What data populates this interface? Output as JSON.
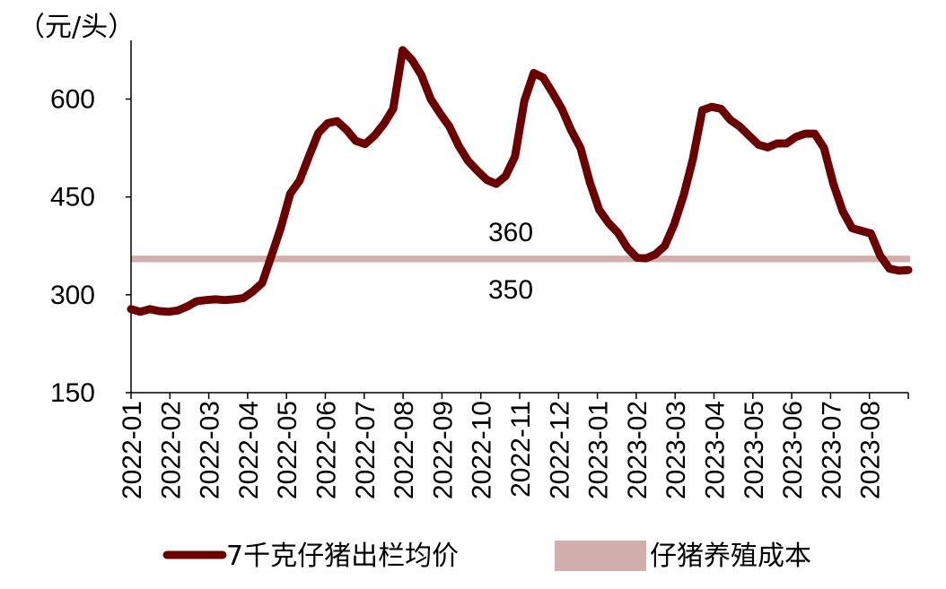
{
  "chart_data": {
    "type": "line",
    "unit_label": "（元/头）",
    "ylim": [
      150,
      690
    ],
    "yticks": [
      150,
      300,
      450,
      600
    ],
    "ytick_labels": [
      "150",
      "300",
      "450",
      "600"
    ],
    "x_labels": [
      "2022-01",
      "2022-02",
      "2022-03",
      "2022-04",
      "2022-05",
      "2022-06",
      "2022-07",
      "2022-08",
      "2022-09",
      "2022-10",
      "2022-11",
      "2022-12",
      "2023-01",
      "2023-02",
      "2023-03",
      "2023-04",
      "2023-05",
      "2023-06",
      "2023-07",
      "2023-08"
    ],
    "series": [
      {
        "name": "7千克仔猪出栏均价",
        "color": "#6b0000",
        "values": [
          278,
          274,
          278,
          275,
          274,
          276,
          282,
          290,
          292,
          293,
          292,
          293,
          295,
          305,
          318,
          360,
          403,
          455,
          475,
          512,
          548,
          563,
          566,
          553,
          536,
          531,
          544,
          562,
          585,
          675,
          660,
          637,
          600,
          578,
          558,
          528,
          505,
          490,
          476,
          470,
          482,
          512,
          597,
          640,
          633,
          610,
          585,
          552,
          525,
          472,
          430,
          410,
          395,
          372,
          357,
          356,
          362,
          375,
          408,
          452,
          508,
          583,
          588,
          585,
          568,
          558,
          544,
          530,
          526,
          532,
          532,
          542,
          547,
          547,
          525,
          470,
          428,
          402,
          398,
          394,
          360,
          340,
          337,
          338
        ]
      },
      {
        "name": "仔猪养殖成本",
        "color": "#d2aeac",
        "band": [
          350,
          360
        ]
      }
    ],
    "annotations": {
      "upper": "360",
      "lower": "350"
    },
    "legend": {
      "position": "bottom",
      "items": [
        "7千克仔猪出栏均价",
        "仔猪养殖成本"
      ]
    },
    "grid": false
  }
}
